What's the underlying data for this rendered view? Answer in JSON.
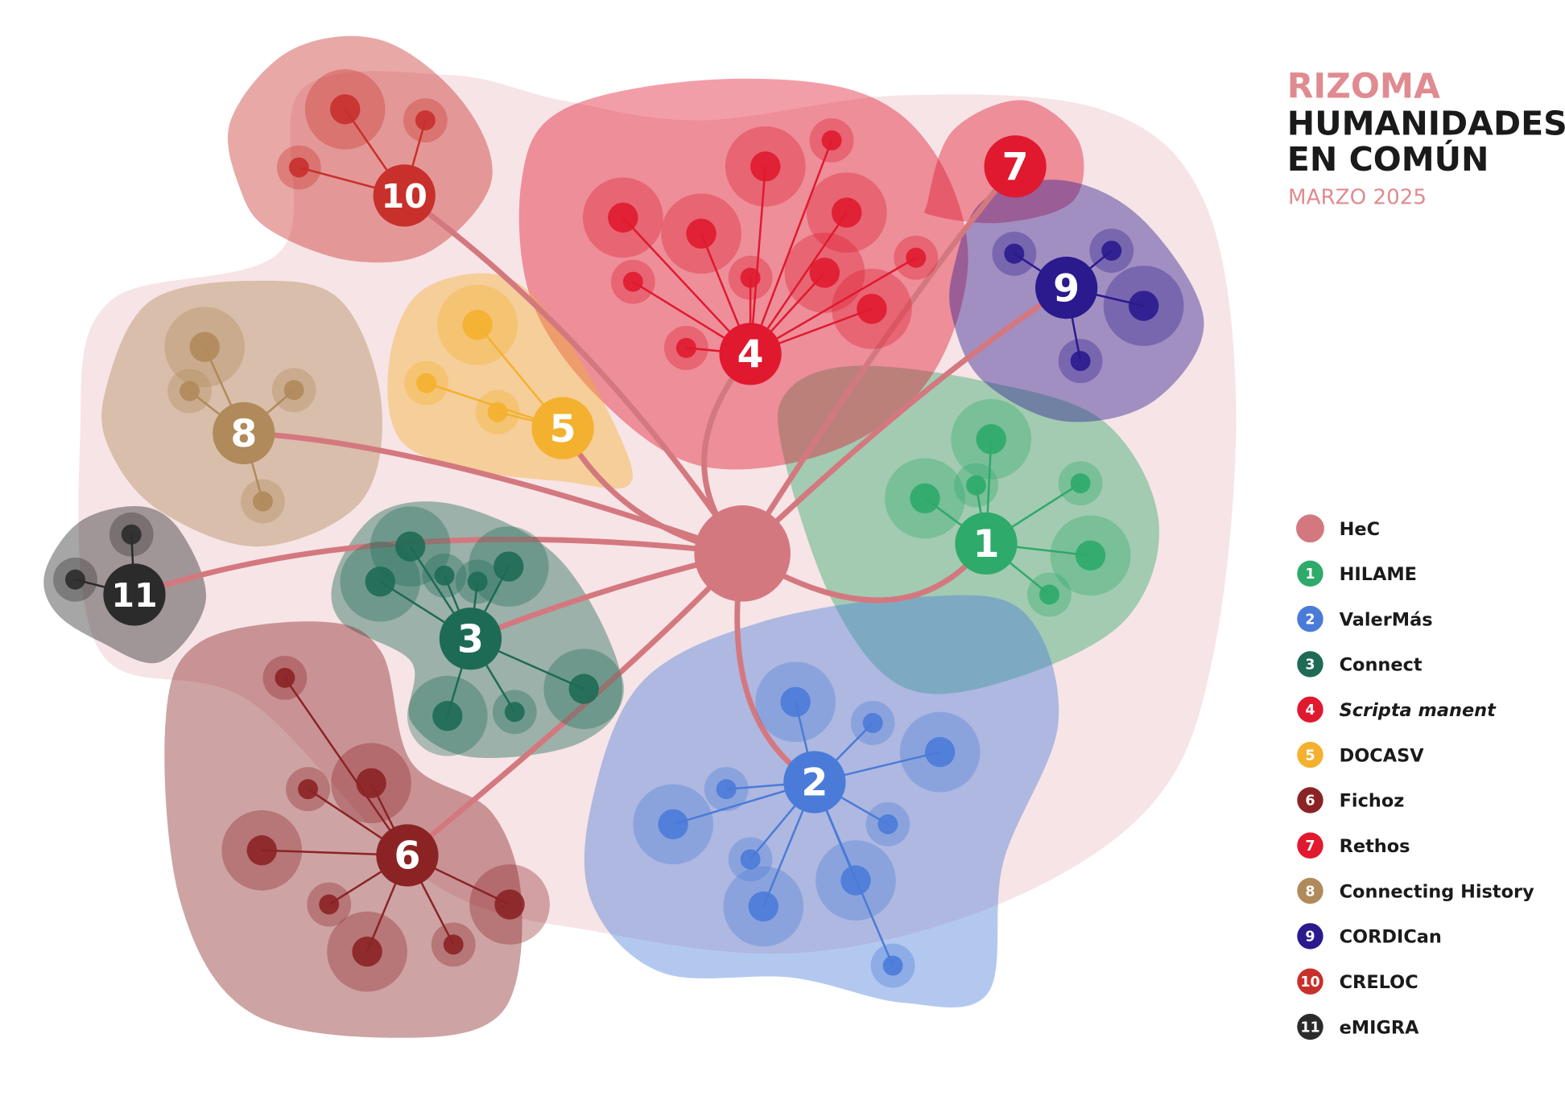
{
  "title": {
    "line1": "RIZOMA",
    "line2": "HUMANIDADES",
    "line3": "EN COMÚN",
    "date": "MARZO 2025"
  },
  "hub": {
    "name": "HeC",
    "color": "#d4787f"
  },
  "projects": [
    {
      "number": "1",
      "name": "HILAME",
      "color": "#2eaa6a"
    },
    {
      "number": "2",
      "name": "ValerMás",
      "color": "#4a7bd8"
    },
    {
      "number": "3",
      "name": "Connect",
      "color": "#1e6b55"
    },
    {
      "number": "4",
      "name": "Scripta manent",
      "color": "#e0192f"
    },
    {
      "number": "5",
      "name": "DOCASV",
      "color": "#f4b12f"
    },
    {
      "number": "6",
      "name": "Fichoz",
      "color": "#8b2325"
    },
    {
      "number": "7",
      "name": "Rethos",
      "color": "#e0192f"
    },
    {
      "number": "8",
      "name": "Connecting History",
      "color": "#b08a5a"
    },
    {
      "number": "9",
      "name": "CORDICan",
      "color": "#2a1a8e"
    },
    {
      "number": "10",
      "name": "CRELOC",
      "color": "#c8302c"
    },
    {
      "number": "11",
      "name": "eMIGRA",
      "color": "#2b2b2b"
    }
  ]
}
